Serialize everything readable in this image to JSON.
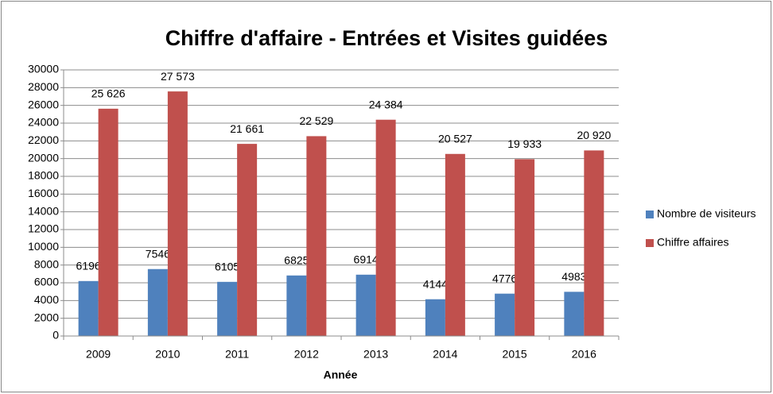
{
  "chart_data": {
    "type": "bar",
    "title": "Chiffre d'affaire - Entrées et Visites guidées",
    "x_label": "Année",
    "categories": [
      "2009",
      "2010",
      "2011",
      "2012",
      "2013",
      "2014",
      "2015",
      "2016"
    ],
    "series": [
      {
        "name": "Nombre de visiteurs",
        "color": "#4f81bd",
        "values": [
          6196,
          7546,
          6105,
          6825,
          6914,
          4144,
          4776,
          4983
        ]
      },
      {
        "name": "Chiffre affaires",
        "color": "#c0504d",
        "values": [
          25626,
          27573,
          21661,
          22529,
          24384,
          20527,
          19933,
          20920
        ],
        "value_labels": [
          "25 626",
          "27 573",
          "21 661",
          "22 529",
          "24 384",
          "20 527",
          "19 933",
          "20 920"
        ]
      }
    ],
    "ylim": [
      0,
      30000
    ],
    "yticks": [
      0,
      2000,
      4000,
      6000,
      8000,
      10000,
      12000,
      14000,
      16000,
      18000,
      20000,
      22000,
      24000,
      26000,
      28000,
      30000
    ],
    "grid": true,
    "legend": "right"
  }
}
